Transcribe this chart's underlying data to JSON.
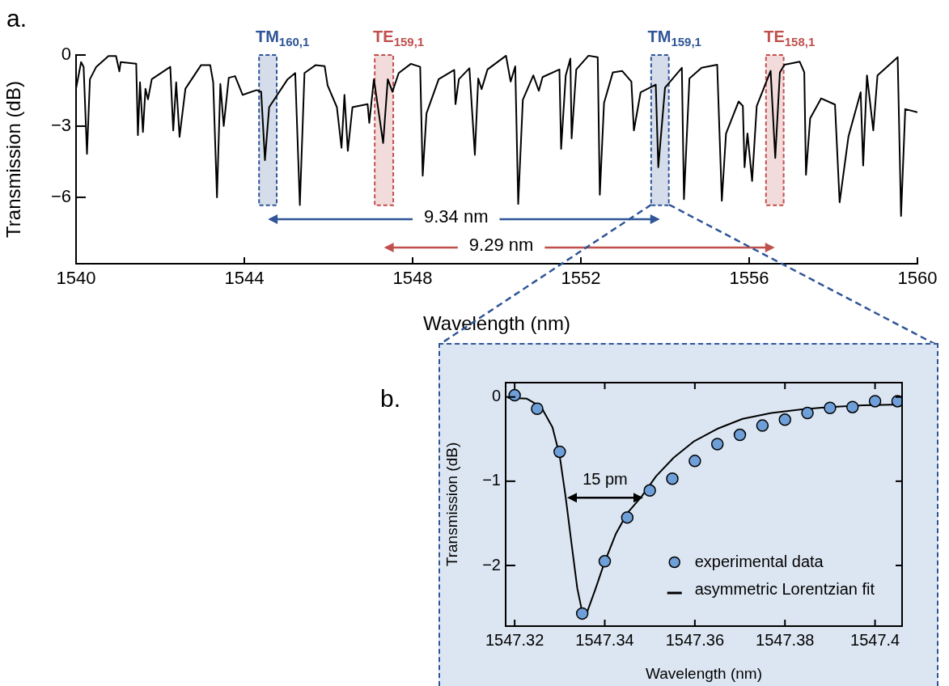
{
  "chart_data": [
    {
      "type": "line",
      "title": "a.",
      "xlabel": "Wavelength (nm)",
      "ylabel": "Transmission (dB)",
      "xlim": [
        1540,
        1560
      ],
      "xticks": [
        1540,
        1544,
        1548,
        1552,
        1556,
        1560
      ],
      "ylim": [
        -8.8,
        0
      ],
      "yticks": [
        0,
        {
          "value": -3,
          "label": "−3"
        },
        {
          "value": -6,
          "label": "−6"
        }
      ],
      "legend": false,
      "series": [
        {
          "color": "#000000",
          "marker": "none",
          "x": [
            1540.0,
            1540.12,
            1540.18,
            1540.26,
            1540.33,
            1540.48,
            1540.77,
            1540.95,
            1541.03,
            1541.06,
            1541.43,
            1541.47,
            1541.52,
            1541.59,
            1541.65,
            1541.71,
            1541.8,
            1542.24,
            1542.31,
            1542.38,
            1542.46,
            1542.6,
            1542.97,
            1543.19,
            1543.26,
            1543.35,
            1543.43,
            1543.51,
            1543.63,
            1543.78,
            1543.96,
            1544.29,
            1544.4,
            1544.49,
            1544.59,
            1545.03,
            1545.21,
            1545.32,
            1545.43,
            1545.69,
            1545.91,
            1545.98,
            1546.2,
            1546.31,
            1546.38,
            1546.46,
            1546.57,
            1546.93,
            1546.97,
            1547.08,
            1547.3,
            1547.41,
            1547.52,
            1547.67,
            1547.96,
            1548.18,
            1548.24,
            1548.33,
            1548.62,
            1548.99,
            1549.02,
            1549.1,
            1549.35,
            1549.48,
            1549.56,
            1549.64,
            1549.78,
            1550.22,
            1550.33,
            1550.44,
            1550.51,
            1550.62,
            1550.87,
            1551.0,
            1551.09,
            1551.49,
            1551.53,
            1551.64,
            1551.75,
            1551.78,
            1551.89,
            1552.18,
            1552.4,
            1552.45,
            1552.55,
            1552.76,
            1552.98,
            1553.2,
            1553.26,
            1553.42,
            1553.78,
            1553.84,
            1554.0,
            1554.4,
            1554.45,
            1554.58,
            1554.87,
            1555.24,
            1555.35,
            1555.45,
            1555.75,
            1555.85,
            1555.89,
            1555.96,
            1556.07,
            1556.18,
            1556.51,
            1556.62,
            1556.73,
            1556.84,
            1557.2,
            1557.31,
            1557.35,
            1557.45,
            1557.71,
            1558.04,
            1558.15,
            1558.36,
            1558.65,
            1558.71,
            1558.8,
            1558.95,
            1559.05,
            1559.53,
            1559.61,
            1559.71,
            1560.0
          ],
          "values": [
            -1.42,
            -0.3,
            -0.5,
            -4.17,
            -1.02,
            -0.5,
            -0.04,
            -0.04,
            -0.69,
            -0.3,
            -0.37,
            -3.38,
            -1.15,
            -3.25,
            -1.42,
            -1.87,
            -1.02,
            -0.5,
            -3.18,
            -1.15,
            -3.45,
            -1.42,
            -0.43,
            -0.43,
            -1.15,
            -6.0,
            -1.22,
            -2.99,
            -0.96,
            -0.89,
            -1.68,
            -1.48,
            -1.55,
            -4.43,
            -2.2,
            -1.02,
            -0.76,
            -6.33,
            -0.76,
            -0.43,
            -0.47,
            -1.28,
            -2.2,
            -3.91,
            -1.68,
            -4.04,
            -2.2,
            -2.07,
            -2.86,
            -1.02,
            -3.71,
            -1.02,
            -1.55,
            -0.76,
            -0.37,
            -0.5,
            -5.09,
            -2.46,
            -1.02,
            -0.63,
            -2.07,
            -1.02,
            -0.56,
            -4.21,
            -0.99,
            -1.44,
            -0.61,
            -0.03,
            -1.12,
            -0.48,
            -6.28,
            -1.89,
            -0.86,
            -1.51,
            -0.93,
            -0.61,
            -3.96,
            -0.86,
            -0.15,
            -3.51,
            -0.61,
            -0.03,
            -0.09,
            -5.89,
            -2.02,
            -0.73,
            -0.67,
            -1.12,
            -3.18,
            -1.57,
            -1.25,
            -4.73,
            -1.38,
            -0.54,
            -6.08,
            -0.99,
            -0.54,
            -0.41,
            -6.15,
            -3.31,
            -1.96,
            -2.15,
            -4.73,
            -3.31,
            -5.31,
            -2.15,
            -0.67,
            -4.34,
            -0.73,
            -0.41,
            -0.28,
            -0.73,
            -5.05,
            -2.67,
            -1.83,
            -2.09,
            -6.21,
            -3.44,
            -1.57,
            -4.66,
            -0.86,
            -3.18,
            -0.86,
            -0.09,
            -6.79,
            -2.28,
            -2.41
          ]
        }
      ],
      "bands": [
        {
          "axis": "x",
          "from": 1544.35,
          "to": 1544.77,
          "label": "TM$_{160,1}$",
          "color": "#2f5597"
        },
        {
          "axis": "x",
          "from": 1547.1,
          "to": 1547.54,
          "label": "TE$_{159,1}$",
          "color": "#c0504d"
        },
        {
          "axis": "x",
          "from": 1553.67,
          "to": 1554.09,
          "label": "TM$_{159,1}$",
          "color": "#2f5597"
        },
        {
          "axis": "x",
          "from": 1556.4,
          "to": 1556.82,
          "label": "TE$_{158,1}$",
          "color": "#c0504d"
        }
      ],
      "annotations": [
        "9.34 nm",
        "9.29 nm"
      ]
    },
    {
      "type": "scatter",
      "title": "b.",
      "xlabel": "Wavelength (nm)",
      "ylabel": "Transmission (dB)",
      "xlim": [
        1547.318,
        1547.406
      ],
      "xticks": [
        1547.32,
        1547.34,
        1547.36,
        1547.38,
        1547.4
      ],
      "ylim": [
        -2.72,
        0.17
      ],
      "yticks": [
        0,
        {
          "value": -1,
          "label": "−1"
        },
        {
          "value": -2,
          "label": "−2"
        }
      ],
      "legend": "bottom right",
      "series": [
        {
          "name": "experimental data",
          "color": "#6f9fd8",
          "marker": "circle",
          "x": [
            1547.32,
            1547.325,
            1547.33,
            1547.335,
            1547.34,
            1547.345,
            1547.35,
            1547.355,
            1547.36,
            1547.365,
            1547.37,
            1547.375,
            1547.38,
            1547.385,
            1547.39,
            1547.395,
            1547.4,
            1547.405
          ],
          "values": [
            0.02,
            -0.14,
            -0.65,
            -2.57,
            -1.95,
            -1.43,
            -1.11,
            -0.97,
            -0.76,
            -0.56,
            -0.45,
            -0.34,
            -0.27,
            -0.19,
            -0.13,
            -0.12,
            -0.05,
            -0.05
          ]
        },
        {
          "name": "asymmetric Lorentzian fit",
          "type": "line",
          "color": "#000000",
          "marker": "none",
          "x": [
            1547.3185,
            1547.3227,
            1547.3259,
            1547.3284,
            1547.33,
            1547.3313,
            1547.3326,
            1547.3339,
            1547.3351,
            1547.3361,
            1547.338,
            1547.3399,
            1547.3425,
            1547.345,
            1547.3482,
            1547.3514,
            1547.3553,
            1547.3597,
            1547.3649,
            1547.3706,
            1547.377,
            1547.3834,
            1547.3898,
            1547.3974,
            1547.4059
          ],
          "values": [
            -0.01,
            -0.02,
            -0.12,
            -0.36,
            -0.7,
            -1.18,
            -1.73,
            -2.27,
            -2.58,
            -2.55,
            -2.27,
            -1.97,
            -1.62,
            -1.38,
            -1.18,
            -0.94,
            -0.72,
            -0.53,
            -0.38,
            -0.26,
            -0.19,
            -0.15,
            -0.12,
            -0.1,
            -0.09
          ]
        }
      ],
      "annotations": [
        "15 pm"
      ]
    }
  ]
}
